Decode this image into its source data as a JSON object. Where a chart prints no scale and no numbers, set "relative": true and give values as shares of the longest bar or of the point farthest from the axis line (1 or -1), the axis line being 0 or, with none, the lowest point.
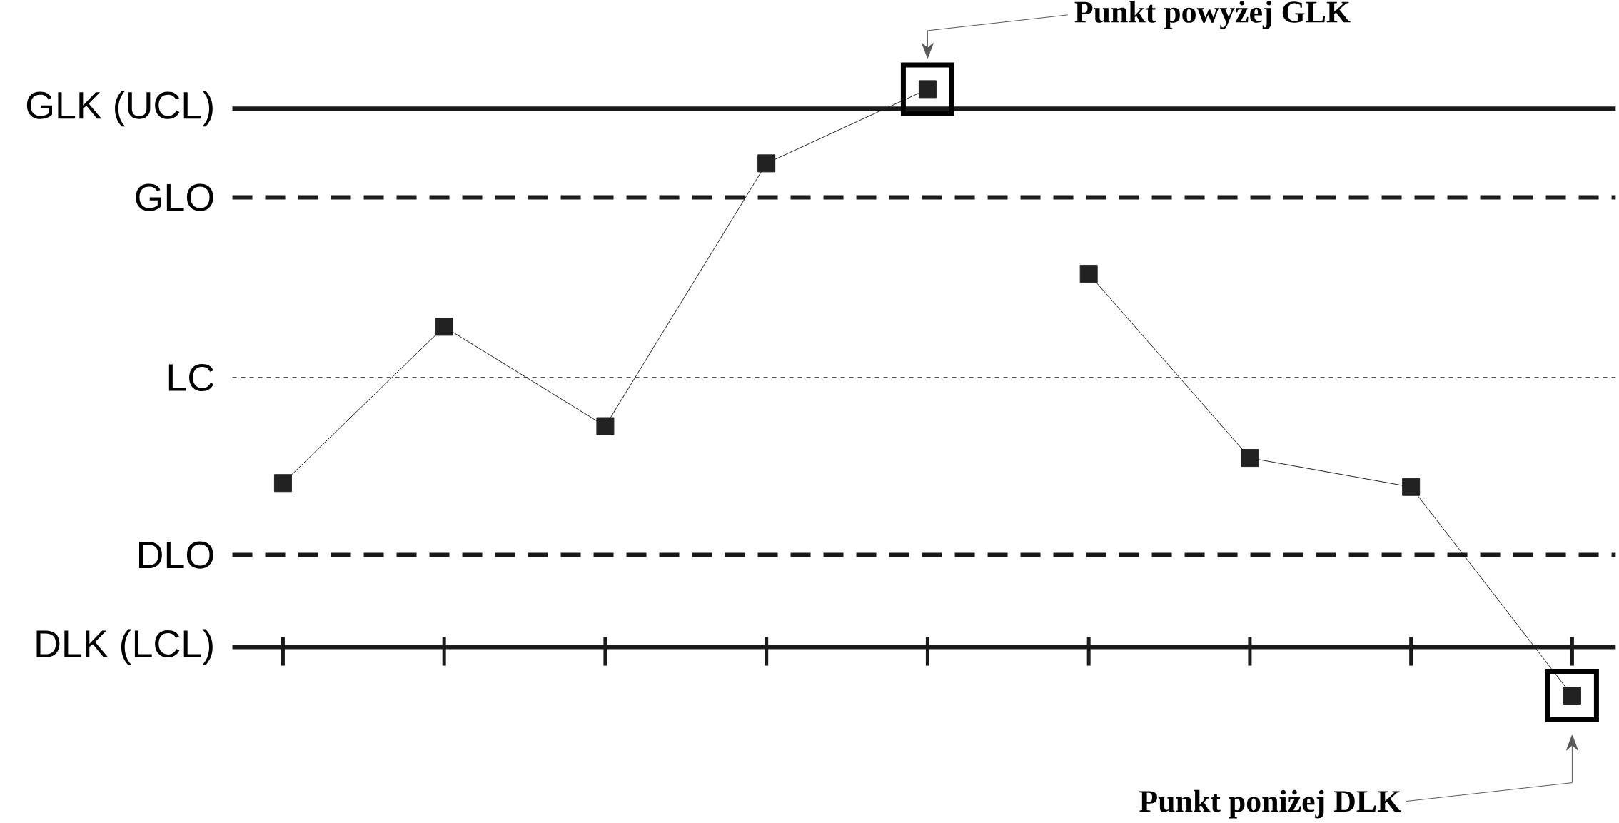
{
  "chart_data": {
    "type": "line",
    "relative": true,
    "marker": "square",
    "line_style": "solid",
    "categories": [
      null,
      null,
      null,
      null,
      null,
      null,
      null,
      null,
      null
    ],
    "series": [
      {
        "color": "#222222",
        "values": [
          0.294,
          0.574,
          0.396,
          0.867,
          1,
          null,
          null,
          null,
          null
        ]
      },
      {
        "color": "#222222",
        "values": [
          null,
          null,
          null,
          null,
          null,
          0.669,
          0.339,
          0.287,
          -0.087
        ]
      }
    ],
    "ref_lines": [
      {
        "axis": "y",
        "value": 0.965,
        "label": "GLK (UCL)",
        "line_style": "solid",
        "color": "#1a1a1a"
      },
      {
        "axis": "y",
        "value": 0.806,
        "label": "GLO",
        "line_style": "dashed",
        "color": "#1a1a1a"
      },
      {
        "axis": "y",
        "value": 0.483,
        "label": "LC",
        "line_style": "dotted",
        "color": "#1a1a1a"
      },
      {
        "axis": "y",
        "value": 0.165,
        "label": "DLO",
        "line_style": "dashed",
        "color": "#1a1a1a"
      },
      {
        "axis": "y",
        "value": 0,
        "label": "DLK (LCL)",
        "line_style": "solid",
        "color": "#1a1a1a"
      }
    ],
    "annotations": [
      "Punkt powyżej GLK",
      "Punkt poniżej DLK"
    ]
  }
}
